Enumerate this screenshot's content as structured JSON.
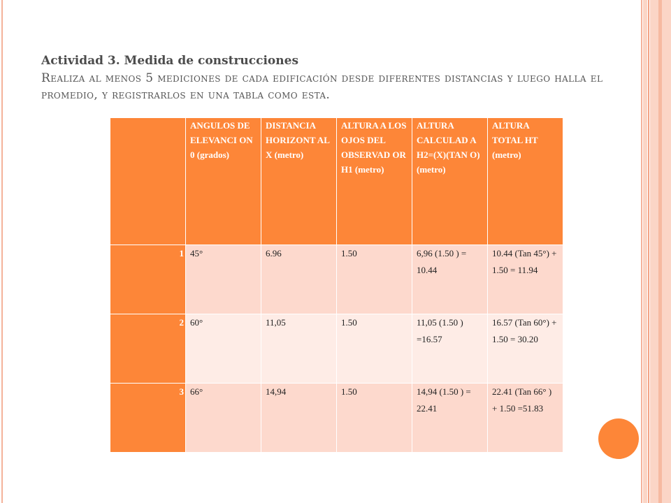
{
  "slide": {
    "title": "Actividad 3. Medida de construcciones",
    "subtitle": "Realiza al menos 5 mediciones de cada edificación desde diferentes distancias y luego halla el promedio, y registrarlos en una tabla como esta."
  },
  "table": {
    "headers": [
      "",
      "ANGULOS DE ELEVANCI ON 0 (grados)",
      "DISTANCIA HORIZONT AL X (metro)",
      "ALTURA A LOS OJOS DEL OBSERVAD OR H1 (metro)",
      "ALTURA CALCULAD A H2=(X)(TAN O) (metro)",
      "ALTURA TOTAL HT (metro)"
    ],
    "rows": [
      {
        "index": "1",
        "angle": "45°",
        "distance": "6.96",
        "eye_height": "1.50",
        "calc_height": "6,96 (1.50 ) = 10.44",
        "total_height": "10.44 (Tan 45°) + 1.50 = 11.94"
      },
      {
        "index": "2",
        "angle": "60°",
        "distance": "11,05",
        "eye_height": "1.50",
        "calc_height": "11,05 (1.50 ) =16.57",
        "total_height": "16.57 (Tan 60°) + 1.50 = 30.20"
      },
      {
        "index": "3",
        "angle": "66°",
        "distance": "14,94",
        "eye_height": "1.50",
        "calc_height": "14,94 (1.50 ) = 22.41",
        "total_height": "22.41 (Tan 66° ) + 1.50 =51.83"
      }
    ]
  },
  "colors": {
    "accent": "#fd8638",
    "row_light": "#fdd9cd",
    "row_lighter": "#feece6",
    "border_stripe": "#f4b29a"
  }
}
